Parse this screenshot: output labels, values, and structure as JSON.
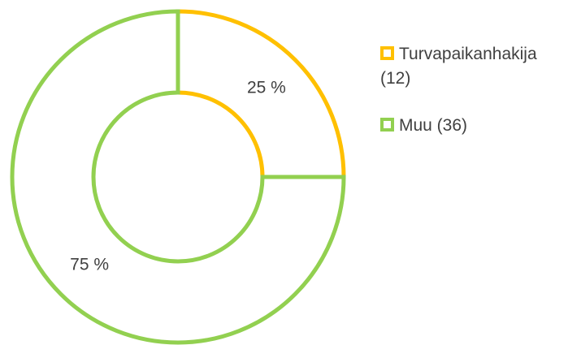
{
  "chart_data": {
    "type": "donut",
    "categories": [
      "Turvapaikanhakija (12)",
      "Muu (36)"
    ],
    "values": [
      25,
      75
    ],
    "value_labels": [
      "25 %",
      "75 %"
    ],
    "colors": [
      "#ffc000",
      "#92d050"
    ]
  }
}
